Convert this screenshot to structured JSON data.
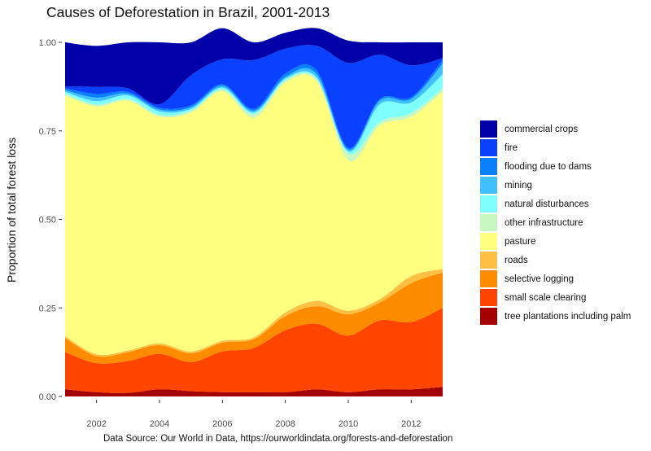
{
  "chart_data": {
    "type": "area",
    "title": "Causes of Deforestation in Brazil, 2001-2013",
    "ylabel": "Proportion of total forest loss",
    "xlabel": "",
    "caption": "Data Source: Our World in Data, https://ourworldindata.org/forests-and-deforestation",
    "x": [
      2001,
      2002,
      2003,
      2004,
      2005,
      2006,
      2007,
      2008,
      2009,
      2010,
      2011,
      2012,
      2013
    ],
    "xlim": [
      2001,
      2013
    ],
    "ylim": [
      0,
      1
    ],
    "x_ticks": [
      2002,
      2004,
      2006,
      2008,
      2010,
      2012
    ],
    "y_ticks": [
      0,
      0.25,
      0.5,
      0.75,
      1
    ],
    "y_tick_labels": [
      "0.00",
      "0.25",
      "0.50",
      "0.75",
      "1.00"
    ],
    "grid": false,
    "legend_position": "right",
    "series": [
      {
        "name": "tree plantations including palm",
        "color": "#a50000",
        "values": [
          0.02,
          0.012,
          0.01,
          0.02,
          0.015,
          0.012,
          0.012,
          0.012,
          0.02,
          0.012,
          0.02,
          0.02,
          0.027
        ]
      },
      {
        "name": "small scale clearing",
        "color": "#ff4500",
        "values": [
          0.105,
          0.082,
          0.09,
          0.1,
          0.082,
          0.115,
          0.125,
          0.175,
          0.185,
          0.16,
          0.195,
          0.19,
          0.223
        ]
      },
      {
        "name": "selective logging",
        "color": "#ff8c00",
        "values": [
          0.04,
          0.02,
          0.025,
          0.025,
          0.025,
          0.025,
          0.025,
          0.04,
          0.05,
          0.06,
          0.05,
          0.11,
          0.1
        ]
      },
      {
        "name": "roads",
        "color": "#ffc044",
        "values": [
          0.005,
          0.005,
          0.005,
          0.005,
          0.005,
          0.005,
          0.005,
          0.01,
          0.015,
          0.01,
          0.01,
          0.02,
          0.01
        ]
      },
      {
        "name": "pasture",
        "color": "#ffff80",
        "values": [
          0.68,
          0.7,
          0.705,
          0.64,
          0.675,
          0.705,
          0.62,
          0.65,
          0.62,
          0.425,
          0.49,
          0.45,
          0.5
        ]
      },
      {
        "name": "other infrastructure",
        "color": "#c8f8c0",
        "values": [
          0.005,
          0.005,
          0.005,
          0.005,
          0.005,
          0.005,
          0.01,
          0.005,
          0.005,
          0.02,
          0.01,
          0.01,
          0.01
        ]
      },
      {
        "name": "natural disturbances",
        "color": "#80ffff",
        "values": [
          0.005,
          0.01,
          0.01,
          0.01,
          0.005,
          0.005,
          0.005,
          0.005,
          0.005,
          0.005,
          0.05,
          0.03,
          0.04
        ]
      },
      {
        "name": "mining",
        "color": "#40c0ff",
        "values": [
          0.005,
          0.01,
          0.005,
          0.005,
          0.005,
          0.005,
          0.005,
          0.005,
          0.01,
          0.005,
          0.01,
          0.01,
          0.03
        ]
      },
      {
        "name": "flooding due to dams",
        "color": "#0a80ff",
        "values": [
          0.005,
          0.01,
          0.005,
          0.005,
          0.005,
          0.005,
          0.005,
          0.01,
          0.01,
          0.005,
          0.005,
          0.005,
          0.01
        ]
      },
      {
        "name": "fire",
        "color": "#0a40ff",
        "values": [
          0.005,
          0.02,
          0.01,
          0.01,
          0.085,
          0.07,
          0.138,
          0.07,
          0.07,
          0.24,
          0.125,
          0.09,
          0.005
        ]
      },
      {
        "name": "commercial crops",
        "color": "#0000a8",
        "values": [
          0.125,
          0.116,
          0.13,
          0.175,
          0.093,
          0.088,
          0.05,
          0.045,
          0.05,
          0.063,
          0.035,
          0.065,
          0.045
        ]
      }
    ]
  }
}
